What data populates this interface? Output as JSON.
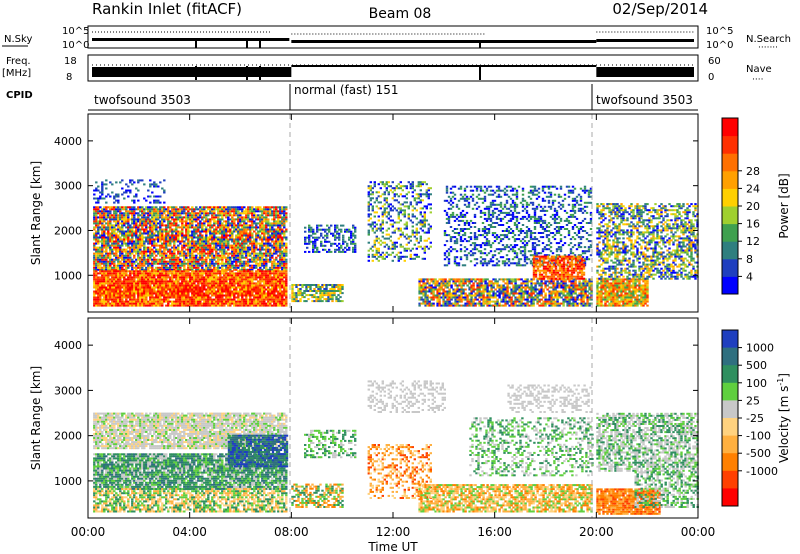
{
  "header": {
    "station": "Rankin Inlet (fitACF)",
    "beam": "Beam 08",
    "date": "02/Sep/2014"
  },
  "strip": {
    "nsky_label": "N.Sky",
    "nsky_ticks": [
      "10^5",
      "10^0"
    ],
    "nsearch_label": "N.Search",
    "nsearch_ticks": [
      "10^5",
      "10^0"
    ],
    "freq_label": "Freq.",
    "freq_unit": "[MHz]",
    "freq_ticks": [
      "18",
      "8"
    ],
    "nave_label": "Nave",
    "nave_ticks": [
      "60",
      "0"
    ],
    "cpid_label": "CPID",
    "cpid_segments": [
      {
        "name": "twofsound 3503"
      },
      {
        "name": "normal (fast) 151"
      },
      {
        "name": "twofsound 3503"
      }
    ]
  },
  "colorbars": {
    "power_label": "Power [dB]",
    "power_ticks": [
      "4",
      "8",
      "12",
      "16",
      "20",
      "24",
      "28"
    ],
    "power_colors": [
      "#0000ff",
      "#1f3fbf",
      "#2f7f7f",
      "#3fa04f",
      "#9fcf2f",
      "#ffd000",
      "#ffa000",
      "#ff7000",
      "#ff3000",
      "#ff0000"
    ],
    "velocity_label": "Velocity [m s",
    "velocity_label_exp": "-1",
    "velocity_label_end": "]",
    "velocity_ticks": [
      "1000",
      "500",
      "100",
      "25",
      "-25",
      "-100",
      "-500",
      "-1000"
    ],
    "velocity_colors": [
      "#1f3fbf",
      "#2f6f7f",
      "#2f8f5f",
      "#5fcf3f",
      "#c8c8c8",
      "#ffd27f",
      "#ffb040",
      "#ff8000",
      "#ff4000",
      "#ff0000"
    ]
  },
  "chart_data": {
    "type": "heatmap",
    "xlabel": "Time UT",
    "ylabel": "Slant Range [km]",
    "x_ticks": [
      "00:00",
      "04:00",
      "08:00",
      "12:00",
      "16:00",
      "20:00",
      "00:00"
    ],
    "y_ticks": [
      "1000",
      "2000",
      "3000",
      "4000"
    ],
    "xlim_hours": [
      0,
      24
    ],
    "ylim_km": [
      180,
      4600
    ],
    "mode_boundaries_hours": [
      8.0,
      20.0
    ],
    "panels": [
      {
        "quantity": "Power",
        "unit": "dB",
        "range": [
          0,
          30
        ]
      },
      {
        "quantity": "Velocity",
        "unit": "m s-1",
        "range": [
          -1000,
          1000
        ]
      }
    ]
  }
}
